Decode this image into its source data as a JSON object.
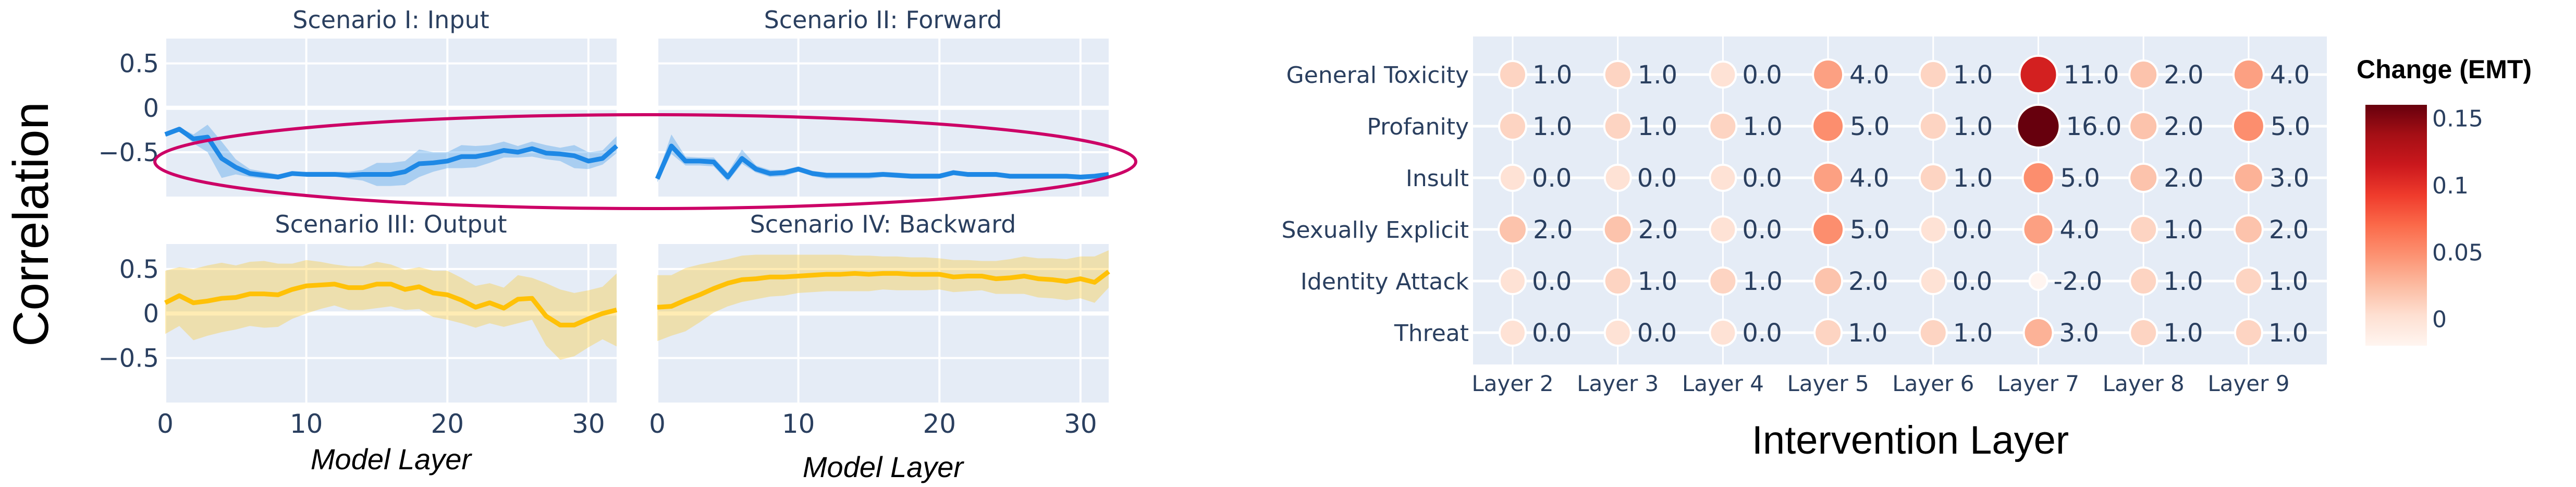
{
  "left_figure": {
    "y_label": "Correlation",
    "x_label": "Model Layer",
    "highlight_color": "#cc0066"
  },
  "chart_data": [
    {
      "type": "line",
      "title": "Scenario I: Input",
      "xlim": [
        0,
        32
      ],
      "ylim": [
        -1.0,
        0.78
      ],
      "xticks": [
        "0",
        "10",
        "20",
        "30"
      ],
      "xtick_values": [
        0,
        10,
        20,
        30
      ],
      "yticks": [
        "0.5",
        "0",
        "−0.5"
      ],
      "ytick_values": [
        0.5,
        0,
        -0.5
      ],
      "grid": true,
      "line_color": "#1e88e5",
      "band_color": "#1e88e5",
      "x": [
        0,
        1,
        2,
        3,
        4,
        5,
        6,
        7,
        8,
        9,
        10,
        11,
        12,
        13,
        14,
        15,
        16,
        17,
        18,
        19,
        20,
        21,
        22,
        23,
        24,
        25,
        26,
        27,
        28,
        29,
        30,
        31,
        32
      ],
      "y": [
        -0.3,
        -0.24,
        -0.35,
        -0.33,
        -0.57,
        -0.67,
        -0.74,
        -0.76,
        -0.78,
        -0.74,
        -0.75,
        -0.75,
        -0.75,
        -0.76,
        -0.75,
        -0.75,
        -0.75,
        -0.72,
        -0.63,
        -0.62,
        -0.6,
        -0.55,
        -0.55,
        -0.52,
        -0.48,
        -0.5,
        -0.46,
        -0.51,
        -0.52,
        -0.54,
        -0.6,
        -0.57,
        -0.43
      ],
      "upper": [
        -0.28,
        -0.22,
        -0.3,
        -0.19,
        -0.38,
        -0.58,
        -0.69,
        -0.72,
        -0.75,
        -0.72,
        -0.72,
        -0.72,
        -0.72,
        -0.72,
        -0.7,
        -0.62,
        -0.62,
        -0.6,
        -0.47,
        -0.5,
        -0.5,
        -0.42,
        -0.43,
        -0.42,
        -0.38,
        -0.43,
        -0.38,
        -0.42,
        -0.45,
        -0.42,
        -0.5,
        -0.48,
        -0.32
      ],
      "lower": [
        -0.32,
        -0.26,
        -0.4,
        -0.5,
        -0.79,
        -0.75,
        -0.78,
        -0.8,
        -0.8,
        -0.76,
        -0.77,
        -0.77,
        -0.77,
        -0.8,
        -0.82,
        -0.88,
        -0.88,
        -0.87,
        -0.78,
        -0.72,
        -0.68,
        -0.68,
        -0.67,
        -0.62,
        -0.56,
        -0.56,
        -0.55,
        -0.58,
        -0.6,
        -0.68,
        -0.69,
        -0.64,
        -0.51
      ]
    },
    {
      "type": "line",
      "title": "Scenario II: Forward",
      "xlim": [
        0,
        32
      ],
      "ylim": [
        -1.0,
        0.78
      ],
      "xticks": [],
      "xtick_values": [
        0,
        10,
        20,
        30
      ],
      "yticks": [],
      "ytick_values": [
        0.5,
        0,
        -0.5
      ],
      "grid": true,
      "line_color": "#1e88e5",
      "band_color": "#1e88e5",
      "x": [
        0,
        1,
        2,
        3,
        4,
        5,
        6,
        7,
        8,
        9,
        10,
        11,
        12,
        13,
        14,
        15,
        16,
        17,
        18,
        19,
        20,
        21,
        22,
        23,
        24,
        25,
        26,
        27,
        28,
        29,
        30,
        31,
        32
      ],
      "y": [
        -0.8,
        -0.43,
        -0.6,
        -0.6,
        -0.61,
        -0.78,
        -0.57,
        -0.69,
        -0.74,
        -0.73,
        -0.69,
        -0.74,
        -0.76,
        -0.76,
        -0.76,
        -0.76,
        -0.75,
        -0.76,
        -0.77,
        -0.77,
        -0.77,
        -0.73,
        -0.75,
        -0.75,
        -0.75,
        -0.77,
        -0.77,
        -0.77,
        -0.77,
        -0.77,
        -0.78,
        -0.77,
        -0.75
      ],
      "upper": [
        -0.76,
        -0.3,
        -0.55,
        -0.56,
        -0.56,
        -0.73,
        -0.47,
        -0.65,
        -0.7,
        -0.7,
        -0.66,
        -0.71,
        -0.73,
        -0.73,
        -0.73,
        -0.73,
        -0.72,
        -0.73,
        -0.74,
        -0.74,
        -0.74,
        -0.71,
        -0.73,
        -0.73,
        -0.73,
        -0.75,
        -0.75,
        -0.75,
        -0.75,
        -0.75,
        -0.76,
        -0.75,
        -0.73
      ],
      "lower": [
        -0.84,
        -0.52,
        -0.65,
        -0.65,
        -0.66,
        -0.83,
        -0.63,
        -0.73,
        -0.78,
        -0.77,
        -0.72,
        -0.77,
        -0.8,
        -0.8,
        -0.8,
        -0.8,
        -0.78,
        -0.79,
        -0.8,
        -0.8,
        -0.8,
        -0.76,
        -0.78,
        -0.78,
        -0.78,
        -0.8,
        -0.8,
        -0.8,
        -0.8,
        -0.8,
        -0.81,
        -0.8,
        -0.77
      ]
    },
    {
      "type": "line",
      "title": "Scenario III: Output",
      "xlim": [
        0,
        32
      ],
      "ylim": [
        -1.0,
        0.78
      ],
      "xticks": [
        "0",
        "10",
        "20",
        "30"
      ],
      "xtick_values": [
        0,
        10,
        20,
        30
      ],
      "yticks": [
        "0.5",
        "0",
        "−0.5"
      ],
      "ytick_values": [
        0.5,
        0,
        -0.5
      ],
      "grid": true,
      "line_color": "#ffc107",
      "band_color": "#ffc107",
      "x": [
        0,
        1,
        2,
        3,
        4,
        5,
        6,
        7,
        8,
        9,
        10,
        11,
        12,
        13,
        14,
        15,
        16,
        17,
        18,
        19,
        20,
        21,
        22,
        23,
        24,
        25,
        26,
        27,
        28,
        29,
        30,
        31,
        32
      ],
      "y": [
        0.12,
        0.2,
        0.12,
        0.14,
        0.17,
        0.18,
        0.22,
        0.22,
        0.21,
        0.27,
        0.31,
        0.32,
        0.33,
        0.29,
        0.29,
        0.33,
        0.33,
        0.27,
        0.3,
        0.23,
        0.21,
        0.15,
        0.07,
        0.12,
        0.06,
        0.16,
        0.17,
        -0.03,
        -0.13,
        -0.13,
        -0.06,
        0.0,
        0.04
      ],
      "upper": [
        0.48,
        0.52,
        0.5,
        0.54,
        0.57,
        0.54,
        0.58,
        0.59,
        0.56,
        0.56,
        0.6,
        0.58,
        0.55,
        0.53,
        0.53,
        0.58,
        0.55,
        0.49,
        0.52,
        0.48,
        0.48,
        0.4,
        0.31,
        0.34,
        0.29,
        0.43,
        0.4,
        0.34,
        0.27,
        0.23,
        0.26,
        0.3,
        0.45
      ],
      "lower": [
        -0.23,
        -0.14,
        -0.3,
        -0.25,
        -0.21,
        -0.18,
        -0.14,
        -0.16,
        -0.15,
        -0.06,
        0.0,
        0.05,
        0.09,
        0.04,
        0.04,
        0.06,
        0.08,
        0.04,
        0.05,
        -0.04,
        -0.07,
        -0.11,
        -0.16,
        -0.11,
        -0.15,
        -0.11,
        -0.07,
        -0.36,
        -0.52,
        -0.48,
        -0.38,
        -0.29,
        -0.37
      ]
    },
    {
      "type": "line",
      "title": "Scenario IV: Backward",
      "xlim": [
        0,
        32
      ],
      "ylim": [
        -1.0,
        0.78
      ],
      "xticks": [
        "0",
        "10",
        "20",
        "30"
      ],
      "xtick_values": [
        0,
        10,
        20,
        30
      ],
      "yticks": [],
      "ytick_values": [
        0.5,
        0,
        -0.5
      ],
      "grid": true,
      "line_color": "#ffc107",
      "band_color": "#ffc107",
      "x": [
        0,
        1,
        2,
        3,
        4,
        5,
        6,
        7,
        8,
        9,
        10,
        11,
        12,
        13,
        14,
        15,
        16,
        17,
        18,
        19,
        20,
        21,
        22,
        23,
        24,
        25,
        26,
        27,
        28,
        29,
        30,
        31,
        32
      ],
      "y": [
        0.07,
        0.08,
        0.15,
        0.21,
        0.28,
        0.34,
        0.38,
        0.39,
        0.41,
        0.41,
        0.42,
        0.43,
        0.44,
        0.44,
        0.45,
        0.44,
        0.45,
        0.45,
        0.44,
        0.44,
        0.44,
        0.41,
        0.42,
        0.42,
        0.39,
        0.4,
        0.42,
        0.39,
        0.38,
        0.36,
        0.39,
        0.35,
        0.47
      ],
      "upper": [
        0.43,
        0.43,
        0.51,
        0.55,
        0.58,
        0.61,
        0.65,
        0.66,
        0.66,
        0.66,
        0.66,
        0.66,
        0.66,
        0.66,
        0.65,
        0.65,
        0.64,
        0.64,
        0.63,
        0.63,
        0.62,
        0.6,
        0.6,
        0.59,
        0.59,
        0.61,
        0.64,
        0.62,
        0.62,
        0.61,
        0.64,
        0.64,
        0.71
      ],
      "lower": [
        -0.31,
        -0.25,
        -0.2,
        -0.1,
        0.01,
        0.08,
        0.13,
        0.16,
        0.19,
        0.2,
        0.23,
        0.24,
        0.25,
        0.25,
        0.25,
        0.25,
        0.27,
        0.26,
        0.26,
        0.26,
        0.27,
        0.24,
        0.25,
        0.26,
        0.22,
        0.22,
        0.22,
        0.18,
        0.17,
        0.15,
        0.17,
        0.12,
        0.29
      ]
    },
    {
      "type": "scatter",
      "subtype": "bubble-heatmap",
      "x_label": "Intervention Layer",
      "categories_x": [
        "Layer 2",
        "Layer 3",
        "Layer 4",
        "Layer 5",
        "Layer 6",
        "Layer 7",
        "Layer 8",
        "Layer 9"
      ],
      "categories_y": [
        "General Toxicity",
        "Profanity",
        "Insult",
        "Sexually Explicit",
        "Identity Attack",
        "Threat"
      ],
      "values": [
        [
          1,
          1,
          0,
          4,
          1,
          11,
          2,
          4
        ],
        [
          1,
          1,
          1,
          5,
          1,
          16,
          2,
          5
        ],
        [
          0,
          0,
          0,
          4,
          1,
          5,
          2,
          3
        ],
        [
          2,
          2,
          0,
          5,
          0,
          4,
          1,
          2
        ],
        [
          0,
          1,
          1,
          2,
          0,
          -2,
          1,
          1
        ],
        [
          0,
          0,
          0,
          1,
          1,
          3,
          1,
          1
        ]
      ],
      "colorbar": {
        "title": "Change (EMT)",
        "range": [
          -0.02,
          0.16
        ],
        "ticks": [
          "0.15",
          "0.1",
          "0.05",
          "0"
        ],
        "tick_values": [
          0.15,
          0.1,
          0.05,
          0
        ],
        "colorscale": [
          "#fff5f0",
          "#fee0d2",
          "#fcbba1",
          "#fc9272",
          "#fb6a4a",
          "#ef3b2c",
          "#cb181d",
          "#a50f15",
          "#67000d"
        ]
      },
      "emt_change": [
        [
          0.01,
          0.01,
          0.0,
          0.04,
          0.01,
          0.11,
          0.02,
          0.04
        ],
        [
          0.01,
          0.01,
          0.01,
          0.05,
          0.01,
          0.16,
          0.02,
          0.05
        ],
        [
          0.0,
          0.0,
          0.0,
          0.04,
          0.01,
          0.05,
          0.02,
          0.03
        ],
        [
          0.02,
          0.02,
          0.0,
          0.05,
          0.0,
          0.04,
          0.01,
          0.02
        ],
        [
          0.0,
          0.01,
          0.01,
          0.02,
          0.0,
          -0.02,
          0.01,
          0.01
        ],
        [
          0.0,
          0.0,
          0.0,
          0.01,
          0.01,
          0.03,
          0.01,
          0.01
        ]
      ],
      "grid": true
    }
  ]
}
